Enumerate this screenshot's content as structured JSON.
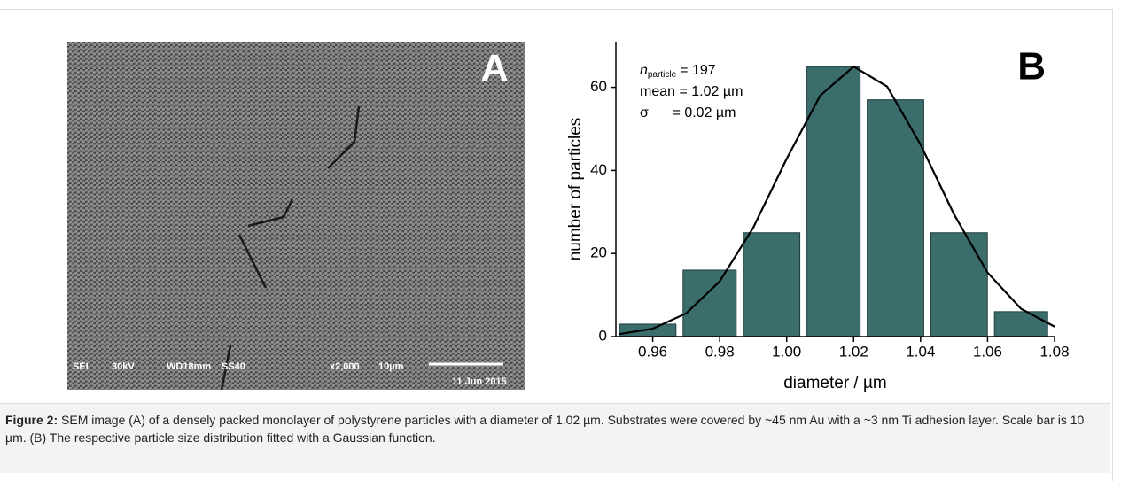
{
  "panel_a": {
    "label": "A",
    "info": [
      "SEI",
      "30kV",
      "WD18mm",
      "SS40",
      "x2,000",
      "10µm",
      "11 Jun 2015"
    ]
  },
  "chart_data": {
    "type": "histogram",
    "panel_label": "B",
    "xlabel": "diameter / µm",
    "ylabel": "number of particles",
    "annotation_n": {
      "symbol": "n",
      "subscript": "particle",
      "text": "= 197"
    },
    "annotations": [
      "mean = 1.02 µm",
      "σ      = 0.02 µm"
    ],
    "bins": [
      0.949,
      0.968,
      0.986,
      1.005,
      1.023,
      1.042,
      1.061,
      1.079
    ],
    "values": [
      3,
      16,
      25,
      65,
      57,
      25,
      6
    ],
    "color": "#3b6d6d",
    "fit": {
      "color": "#000000",
      "x": [
        0.95,
        0.96,
        0.97,
        0.98,
        0.99,
        1.0,
        1.01,
        1.02,
        1.03,
        1.04,
        1.05,
        1.06,
        1.07,
        1.08
      ],
      "y": [
        0.6,
        1.9,
        5.6,
        13.3,
        26.2,
        42.8,
        58.0,
        65.0,
        60.2,
        46.2,
        29.4,
        15.4,
        6.7,
        2.4
      ]
    },
    "xlim": [
      0.949,
      1.08
    ],
    "ylim": [
      0,
      71
    ],
    "xticks": [
      0.96,
      0.98,
      {
        "value": 1,
        "label": "1.00"
      },
      1.02,
      1.04,
      1.06,
      1.08
    ],
    "yticks": [
      0,
      20,
      40,
      60
    ]
  },
  "caption": {
    "label": "Figure 2:",
    "text": "SEM image (A) of a densely packed monolayer of polystyrene particles with a diameter of 1.02 µm. Substrates were covered by ~45 nm Au with a ~3 nm Ti adhesion layer. Scale bar is 10 µm. (B) The respective particle size distribution fitted with a Gaussian function."
  }
}
